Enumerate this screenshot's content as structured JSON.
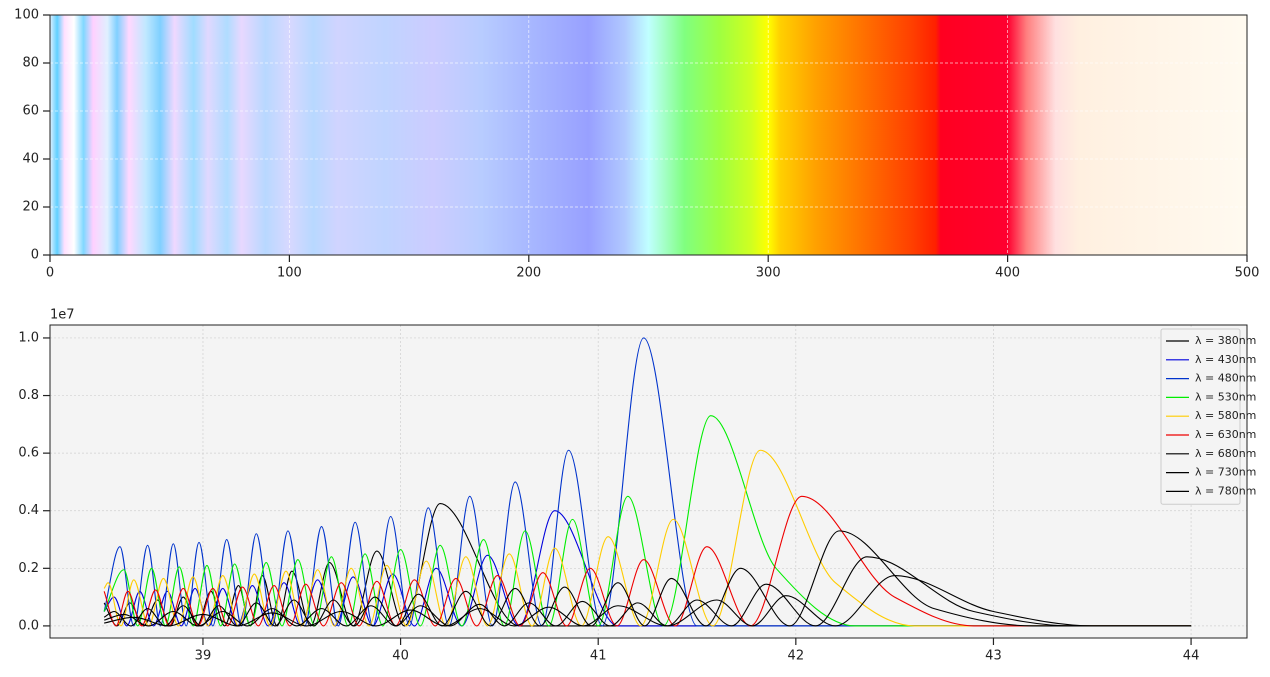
{
  "chart_data": [
    {
      "type": "image",
      "xlim": [
        0,
        500
      ],
      "ylim": [
        0,
        100
      ],
      "xticks": [
        0,
        100,
        200,
        300,
        400,
        500
      ],
      "yticks": [
        0,
        20,
        40,
        60,
        80,
        100
      ],
      "grid": true,
      "stops": [
        {
          "x": 0,
          "color": "#e0f0ff"
        },
        {
          "x": 3,
          "color": "#60d0ff"
        },
        {
          "x": 6,
          "color": "#ffe0ff"
        },
        {
          "x": 10,
          "color": "#ffffff"
        },
        {
          "x": 14,
          "color": "#80d8ff"
        },
        {
          "x": 18,
          "color": "#ffd0ff"
        },
        {
          "x": 24,
          "color": "#e0f0ff"
        },
        {
          "x": 28,
          "color": "#80d0ff"
        },
        {
          "x": 33,
          "color": "#ffd8ff"
        },
        {
          "x": 40,
          "color": "#c0e8ff"
        },
        {
          "x": 46,
          "color": "#80d0ff"
        },
        {
          "x": 52,
          "color": "#f0d8ff"
        },
        {
          "x": 60,
          "color": "#a0dcff"
        },
        {
          "x": 66,
          "color": "#e0d8ff"
        },
        {
          "x": 74,
          "color": "#b0dcff"
        },
        {
          "x": 80,
          "color": "#e8d8ff"
        },
        {
          "x": 90,
          "color": "#b8d8ff"
        },
        {
          "x": 100,
          "color": "#d8d8ff"
        },
        {
          "x": 110,
          "color": "#b8d8ff"
        },
        {
          "x": 120,
          "color": "#d0d4ff"
        },
        {
          "x": 140,
          "color": "#c0d4ff"
        },
        {
          "x": 160,
          "color": "#ccccff"
        },
        {
          "x": 180,
          "color": "#b8ccff"
        },
        {
          "x": 200,
          "color": "#a8b8ff"
        },
        {
          "x": 225,
          "color": "#98a0ff"
        },
        {
          "x": 240,
          "color": "#b0c8ff"
        },
        {
          "x": 250,
          "color": "#c0ffff"
        },
        {
          "x": 265,
          "color": "#80ff80"
        },
        {
          "x": 280,
          "color": "#a0ff40"
        },
        {
          "x": 293,
          "color": "#d0ff20"
        },
        {
          "x": 300,
          "color": "#ffff00"
        },
        {
          "x": 305,
          "color": "#ffd000"
        },
        {
          "x": 320,
          "color": "#ffa000"
        },
        {
          "x": 340,
          "color": "#ff7000"
        },
        {
          "x": 360,
          "color": "#ff4000"
        },
        {
          "x": 370,
          "color": "#ff2000"
        },
        {
          "x": 372,
          "color": "#ff0020"
        },
        {
          "x": 400,
          "color": "#ff0030"
        },
        {
          "x": 408,
          "color": "#ff8080"
        },
        {
          "x": 420,
          "color": "#ffe0e0"
        },
        {
          "x": 430,
          "color": "#fff0e0"
        },
        {
          "x": 500,
          "color": "#fffaf0"
        }
      ]
    },
    {
      "type": "line",
      "xlim": [
        38.226,
        44.283
      ],
      "ylim": [
        -0.042,
        1.045
      ],
      "xticks": [
        39,
        40,
        41,
        42,
        43,
        44
      ],
      "yticks": [
        {
          "value": 0,
          "label": "0.0"
        },
        {
          "value": 0.2,
          "label": "0.2"
        },
        {
          "value": 0.4,
          "label": "0.4"
        },
        {
          "value": 0.6,
          "label": "0.6"
        },
        {
          "value": 0.8,
          "label": "0.8"
        },
        {
          "value": 1,
          "label": "1.0"
        }
      ],
      "y_offset_label": "1e7",
      "grid": true,
      "legend": "upper right",
      "background": "#f4f4f4",
      "series": [
        {
          "name": "λ = 380nm",
          "color": "#000000",
          "x": [
            38.5,
            38.565,
            38.63,
            38.7,
            38.77,
            38.835,
            38.9,
            38.97,
            39.04,
            39.11,
            39.18,
            39.24,
            39.3,
            39.375,
            39.45,
            39.545,
            39.64,
            39.76,
            39.88,
            40.02,
            40.2,
            40.6,
            44.0
          ],
          "values": [
            0.08,
            0,
            0.08,
            0,
            0.09,
            0,
            0.1,
            0,
            0.12,
            0,
            0.14,
            0,
            0.175,
            0,
            0.19,
            0,
            0.22,
            0,
            0.26,
            0,
            0.425,
            0,
            0
          ]
        },
        {
          "name": "λ = 430nm",
          "color": "#0000dd",
          "x": [
            38.5,
            38.55,
            38.615,
            38.68,
            38.75,
            38.82,
            38.89,
            38.96,
            39.03,
            39.1,
            39.175,
            39.25,
            39.33,
            39.41,
            39.495,
            39.58,
            39.67,
            39.76,
            39.86,
            39.96,
            40.07,
            40.18,
            40.31,
            40.44,
            40.6,
            40.78,
            41.1,
            44.0
          ],
          "values": [
            0.05,
            0.1,
            0,
            0.12,
            0,
            0.12,
            0,
            0.13,
            0,
            0.13,
            0,
            0.14,
            0,
            0.15,
            0,
            0.16,
            0,
            0.17,
            0,
            0.18,
            0,
            0.2,
            0,
            0.245,
            0,
            0.4,
            0,
            0
          ]
        },
        {
          "name": "λ = 480nm",
          "color": "#0033cc",
          "x": [
            38.5,
            38.58,
            38.65,
            38.72,
            38.785,
            38.85,
            38.915,
            38.98,
            39.05,
            39.12,
            39.195,
            39.27,
            39.35,
            39.43,
            39.515,
            39.6,
            39.685,
            39.77,
            39.86,
            39.95,
            40.045,
            40.14,
            40.245,
            40.35,
            40.465,
            40.58,
            40.715,
            40.85,
            41.02,
            41.23,
            41.5,
            44.0
          ],
          "values": [
            0.05,
            0.275,
            0,
            0.28,
            0,
            0.285,
            0,
            0.29,
            0,
            0.3,
            0,
            0.32,
            0,
            0.33,
            0,
            0.345,
            0,
            0.36,
            0,
            0.38,
            0,
            0.41,
            0,
            0.45,
            0,
            0.5,
            0,
            0.61,
            0,
            1.0,
            0,
            0
          ]
        },
        {
          "name": "λ = 530nm",
          "color": "#00ee00",
          "x": [
            38.5,
            38.6,
            38.67,
            38.74,
            38.81,
            38.88,
            38.95,
            39.02,
            39.09,
            39.16,
            39.24,
            39.32,
            39.4,
            39.48,
            39.565,
            39.65,
            39.735,
            39.82,
            39.91,
            40.0,
            40.1,
            40.2,
            40.31,
            40.42,
            40.525,
            40.63,
            40.75,
            40.87,
            41.0,
            41.15,
            41.33,
            41.57,
            41.9,
            42.3,
            44.0
          ],
          "values": [
            0.05,
            0.195,
            0,
            0.2,
            0,
            0.205,
            0,
            0.21,
            0,
            0.215,
            0,
            0.22,
            0,
            0.23,
            0,
            0.24,
            0,
            0.25,
            0,
            0.265,
            0,
            0.28,
            0,
            0.3,
            0,
            0.33,
            0,
            0.37,
            0,
            0.45,
            0,
            0.73,
            0.2,
            0,
            0
          ]
        },
        {
          "name": "λ = 580nm",
          "color": "#ffcc00",
          "x": [
            38.5,
            38.52,
            38.585,
            38.65,
            38.725,
            38.8,
            38.875,
            38.95,
            39.025,
            39.1,
            39.18,
            39.26,
            39.34,
            39.42,
            39.5,
            39.58,
            39.665,
            39.75,
            39.84,
            39.93,
            40.03,
            40.13,
            40.23,
            40.33,
            40.44,
            40.55,
            40.665,
            40.78,
            40.915,
            41.05,
            41.215,
            41.38,
            41.58,
            41.82,
            42.2,
            42.6,
            44.0
          ],
          "values": [
            0.13,
            0.15,
            0,
            0.16,
            0,
            0.165,
            0,
            0.17,
            0,
            0.175,
            0,
            0.18,
            0,
            0.19,
            0,
            0.195,
            0,
            0.2,
            0,
            0.21,
            0,
            0.225,
            0,
            0.24,
            0,
            0.25,
            0,
            0.27,
            0,
            0.31,
            0,
            0.37,
            0,
            0.61,
            0.15,
            0,
            0
          ]
        },
        {
          "name": "λ = 630nm",
          "color": "#ee0000",
          "x": [
            38.5,
            38.56,
            38.62,
            38.69,
            38.76,
            38.83,
            38.9,
            38.975,
            39.05,
            39.125,
            39.2,
            39.28,
            39.36,
            39.44,
            39.52,
            39.61,
            39.7,
            39.79,
            39.88,
            39.975,
            40.07,
            40.175,
            40.28,
            40.385,
            40.49,
            40.605,
            40.72,
            40.84,
            40.96,
            41.095,
            41.23,
            41.39,
            41.55,
            41.77,
            42.03,
            42.5,
            42.9,
            44.0
          ],
          "values": [
            0.12,
            0,
            0.12,
            0,
            0.125,
            0,
            0.13,
            0,
            0.13,
            0,
            0.135,
            0,
            0.14,
            0,
            0.145,
            0,
            0.15,
            0,
            0.155,
            0,
            0.16,
            0,
            0.165,
            0,
            0.175,
            0,
            0.185,
            0,
            0.2,
            0,
            0.23,
            0,
            0.275,
            0,
            0.45,
            0.1,
            0,
            0
          ]
        },
        {
          "name": "λ = 680nm",
          "color": "#000000",
          "x": [
            38.5,
            38.55,
            38.635,
            38.72,
            38.81,
            38.9,
            38.99,
            39.08,
            39.175,
            39.27,
            39.365,
            39.46,
            39.56,
            39.66,
            39.765,
            39.87,
            39.98,
            40.09,
            40.21,
            40.33,
            40.455,
            40.58,
            40.705,
            40.83,
            40.965,
            41.1,
            41.235,
            41.37,
            41.545,
            41.72,
            41.97,
            42.22,
            42.7,
            43.2,
            44.0
          ],
          "values": [
            0.03,
            0.05,
            0,
            0.06,
            0,
            0.07,
            0,
            0.07,
            0,
            0.08,
            0,
            0.09,
            0,
            0.09,
            0,
            0.1,
            0,
            0.11,
            0,
            0.12,
            0,
            0.13,
            0,
            0.135,
            0,
            0.15,
            0,
            0.165,
            0,
            0.2,
            0,
            0.33,
            0.06,
            0,
            0
          ]
        },
        {
          "name": "λ = 730nm",
          "color": "#000000",
          "x": [
            38.5,
            38.6,
            38.725,
            38.85,
            38.975,
            39.1,
            39.225,
            39.35,
            39.475,
            39.6,
            39.725,
            39.85,
            39.975,
            40.1,
            40.25,
            40.4,
            40.525,
            40.65,
            40.785,
            40.92,
            41.06,
            41.2,
            41.35,
            41.5,
            41.675,
            41.85,
            42.1,
            42.36,
            42.9,
            43.4,
            44.0
          ],
          "values": [
            0.02,
            0.04,
            0,
            0.05,
            0,
            0.05,
            0,
            0.06,
            0,
            0.06,
            0,
            0.07,
            0,
            0.07,
            0,
            0.075,
            0,
            0.08,
            0,
            0.085,
            0,
            0.08,
            0,
            0.09,
            0,
            0.145,
            0,
            0.24,
            0.05,
            0,
            0
          ]
        },
        {
          "name": "λ = 780nm",
          "color": "#000000",
          "x": [
            38.5,
            38.65,
            38.825,
            39.0,
            39.175,
            39.35,
            39.525,
            39.7,
            39.875,
            40.05,
            40.225,
            40.4,
            40.575,
            40.75,
            40.925,
            41.1,
            41.35,
            41.6,
            41.78,
            41.95,
            42.2,
            42.5,
            43.0,
            43.5,
            44.0
          ],
          "values": [
            0.01,
            0.03,
            0,
            0.04,
            0,
            0.045,
            0,
            0.05,
            0,
            0.055,
            0,
            0.06,
            0,
            0.065,
            0,
            0.07,
            0,
            0.09,
            0,
            0.105,
            0,
            0.175,
            0.05,
            0,
            0
          ]
        }
      ]
    }
  ]
}
